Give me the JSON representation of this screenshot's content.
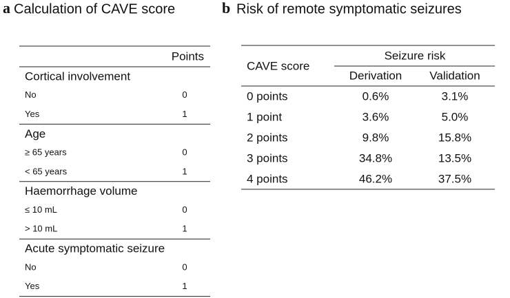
{
  "panel_a": {
    "label": "a",
    "title": "Calculation of CAVE score",
    "table": {
      "header": "Points",
      "sections": [
        {
          "title": "Cortical involvement",
          "rows": [
            [
              "No",
              0
            ],
            [
              "Yes",
              1
            ]
          ]
        },
        {
          "title": "Age",
          "rows": [
            [
              "≥ 65 years",
              0
            ],
            [
              "< 65 years",
              1
            ]
          ]
        },
        {
          "title": "Haemorrhage volume",
          "rows": [
            [
              "≤ 10 mL",
              0
            ],
            [
              "> 10 mL",
              1
            ]
          ]
        },
        {
          "title": "Acute symptomatic seizure",
          "rows": [
            [
              "No",
              0
            ],
            [
              "Yes",
              1
            ]
          ]
        }
      ]
    }
  },
  "panel_b": {
    "label": "b",
    "title": "Risk of remote symptomatic seizures",
    "table": {
      "row_header": "CAVE score",
      "group_header": "Seizure risk",
      "columns": [
        "Derivation",
        "Validation"
      ],
      "rows": [
        [
          "0 points",
          "0.6%",
          "3.1%"
        ],
        [
          "1 point",
          "3.6%",
          "5.0%"
        ],
        [
          "2 points",
          "9.8%",
          "15.8%"
        ],
        [
          "3 points",
          "34.8%",
          "13.5%"
        ],
        [
          "4 points",
          "46.2%",
          "37.5%"
        ]
      ]
    }
  }
}
